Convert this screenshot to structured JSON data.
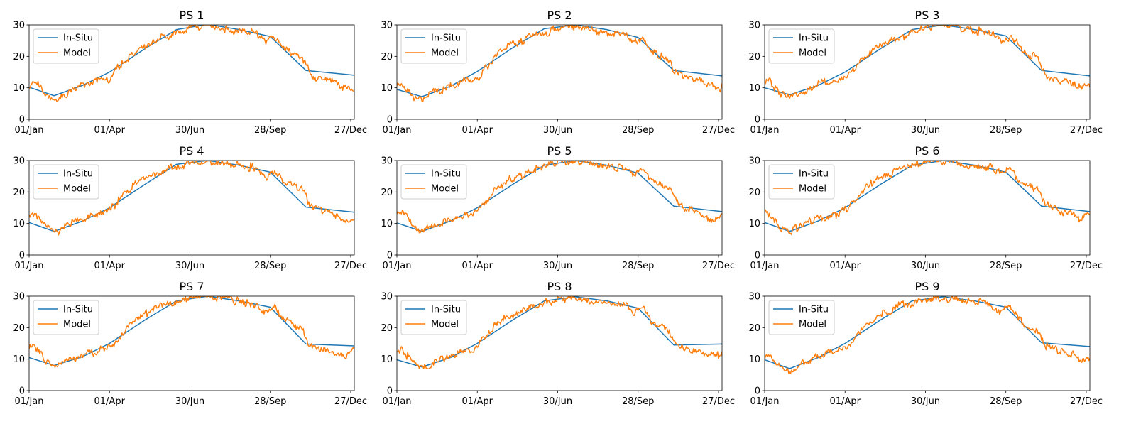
{
  "colors": {
    "insitu": "#1f77b4",
    "model": "#ff7f0e",
    "axis": "#000000",
    "legend_border": "#cccccc"
  },
  "chart_data": [
    {
      "type": "line",
      "title": "PS 1",
      "x_tick_labels": [
        "01/Jan",
        "01/Apr",
        "30/Jun",
        "28/Sep",
        "27/Dec"
      ],
      "x_tick_days": [
        0,
        90,
        180,
        270,
        360
      ],
      "xlim": [
        0,
        364
      ],
      "ylim": [
        0,
        30
      ],
      "y_ticks": [
        0,
        10,
        20,
        30
      ],
      "legend": "upper-left",
      "series": [
        {
          "name": "In-Situ",
          "x": [
            0,
            28,
            60,
            90,
            130,
            165,
            200,
            235,
            270,
            310,
            364
          ],
          "values": [
            10.2,
            7.5,
            10.8,
            15.0,
            22.5,
            28.5,
            30.2,
            28.5,
            26.3,
            15.5,
            14.0
          ]
        },
        {
          "name": "Model",
          "x": [
            0,
            5,
            12,
            20,
            28,
            35,
            45,
            60,
            75,
            90,
            105,
            120,
            135,
            150,
            165,
            180,
            195,
            210,
            225,
            240,
            255,
            265,
            275,
            285,
            295,
            305,
            315,
            325,
            340,
            355,
            364
          ],
          "values": [
            11,
            12,
            11,
            7,
            6,
            7,
            9,
            11,
            12,
            13,
            18,
            22,
            24,
            26,
            27,
            29,
            30,
            29.5,
            28,
            28,
            27,
            25,
            26,
            23,
            21,
            20,
            14,
            13,
            12,
            10,
            10
          ]
        }
      ]
    },
    {
      "type": "line",
      "title": "PS 2",
      "x_tick_labels": [
        "01/Jan",
        "01/Apr",
        "30/Jun",
        "28/Sep",
        "27/Dec"
      ],
      "x_tick_days": [
        0,
        90,
        180,
        270,
        360
      ],
      "xlim": [
        0,
        364
      ],
      "ylim": [
        0,
        30
      ],
      "y_ticks": [
        0,
        10,
        20,
        30
      ],
      "legend": "upper-left",
      "series": [
        {
          "name": "In-Situ",
          "x": [
            0,
            28,
            60,
            90,
            130,
            165,
            200,
            235,
            270,
            310,
            364
          ],
          "values": [
            9.5,
            7.2,
            10.5,
            15.2,
            22.8,
            28.8,
            30.0,
            28.5,
            26.0,
            15.5,
            13.8
          ]
        },
        {
          "name": "Model",
          "x": [
            0,
            5,
            12,
            20,
            28,
            35,
            45,
            60,
            75,
            90,
            105,
            120,
            135,
            150,
            165,
            180,
            195,
            210,
            225,
            240,
            255,
            265,
            275,
            285,
            295,
            305,
            315,
            325,
            340,
            355,
            364
          ],
          "values": [
            11,
            11.5,
            9,
            7,
            6,
            8,
            9,
            10.5,
            12,
            13,
            18,
            23,
            24,
            27,
            27.5,
            29,
            30,
            29,
            28,
            27.5,
            27,
            24,
            26,
            22,
            20,
            18,
            14,
            13,
            12,
            10,
            10
          ]
        }
      ]
    },
    {
      "type": "line",
      "title": "PS 3",
      "x_tick_labels": [
        "01/Jan",
        "01/Apr",
        "30/Jun",
        "28/Sep",
        "27/Dec"
      ],
      "x_tick_days": [
        0,
        90,
        180,
        270,
        360
      ],
      "xlim": [
        0,
        364
      ],
      "ylim": [
        0,
        30
      ],
      "y_ticks": [
        0,
        10,
        20,
        30
      ],
      "legend": "upper-left",
      "series": [
        {
          "name": "In-Situ",
          "x": [
            0,
            28,
            60,
            90,
            130,
            165,
            200,
            235,
            270,
            310,
            364
          ],
          "values": [
            10.0,
            7.8,
            10.8,
            15.0,
            22.5,
            28.5,
            30.0,
            28.5,
            26.5,
            15.5,
            13.8
          ]
        },
        {
          "name": "Model",
          "x": [
            0,
            5,
            12,
            20,
            28,
            35,
            45,
            60,
            75,
            90,
            105,
            120,
            135,
            150,
            165,
            180,
            195,
            210,
            225,
            240,
            255,
            265,
            275,
            285,
            295,
            305,
            315,
            325,
            340,
            355,
            364
          ],
          "values": [
            11,
            12,
            10,
            8,
            7,
            8,
            9,
            11,
            12,
            13,
            18,
            22,
            24,
            26,
            27.5,
            29,
            30,
            29.5,
            28.5,
            28,
            27,
            25,
            26.5,
            23,
            21,
            20,
            14,
            13,
            12,
            10.5,
            11
          ]
        }
      ]
    },
    {
      "type": "line",
      "title": "PS 4",
      "x_tick_labels": [
        "01/Jan",
        "01/Apr",
        "30/Jun",
        "28/Sep",
        "27/Dec"
      ],
      "x_tick_days": [
        0,
        90,
        180,
        270,
        360
      ],
      "xlim": [
        0,
        364
      ],
      "ylim": [
        0,
        30
      ],
      "y_ticks": [
        0,
        10,
        20,
        30
      ],
      "legend": "upper-left",
      "series": [
        {
          "name": "In-Situ",
          "x": [
            0,
            28,
            60,
            90,
            130,
            165,
            200,
            235,
            270,
            310,
            364
          ],
          "values": [
            10.3,
            7.5,
            10.8,
            15.0,
            22.5,
            28.8,
            30.0,
            28.5,
            26.3,
            15.2,
            13.6
          ]
        },
        {
          "name": "Model",
          "x": [
            0,
            5,
            12,
            20,
            28,
            35,
            45,
            60,
            75,
            90,
            105,
            120,
            135,
            150,
            165,
            180,
            195,
            210,
            225,
            240,
            255,
            265,
            275,
            285,
            295,
            305,
            315,
            325,
            340,
            355,
            364
          ],
          "values": [
            12,
            12.5,
            11,
            9,
            7.5,
            8,
            10,
            11.5,
            12.5,
            14,
            19,
            23,
            25,
            27,
            28,
            29.5,
            30,
            29.5,
            29,
            28,
            27.5,
            25,
            27,
            23,
            22,
            21,
            16,
            14.5,
            13,
            11,
            11
          ]
        }
      ]
    },
    {
      "type": "line",
      "title": "PS 5",
      "x_tick_labels": [
        "01/Jan",
        "01/Apr",
        "30/Jun",
        "28/Sep",
        "27/Dec"
      ],
      "x_tick_days": [
        0,
        90,
        180,
        270,
        360
      ],
      "xlim": [
        0,
        364
      ],
      "ylim": [
        0,
        30
      ],
      "y_ticks": [
        0,
        10,
        20,
        30
      ],
      "legend": "upper-left",
      "series": [
        {
          "name": "In-Situ",
          "x": [
            0,
            28,
            60,
            90,
            130,
            165,
            200,
            235,
            270,
            310,
            364
          ],
          "values": [
            10.2,
            7.5,
            10.8,
            15.0,
            22.5,
            28.5,
            30.0,
            28.5,
            26.0,
            15.5,
            13.8
          ]
        },
        {
          "name": "Model",
          "x": [
            0,
            5,
            12,
            20,
            28,
            35,
            45,
            60,
            75,
            90,
            105,
            120,
            135,
            150,
            165,
            180,
            195,
            210,
            225,
            240,
            255,
            265,
            275,
            285,
            295,
            305,
            315,
            325,
            340,
            355,
            364
          ],
          "values": [
            13,
            13.5,
            12,
            9,
            8,
            8.5,
            10,
            11.5,
            12.5,
            14,
            19,
            23,
            25,
            27,
            28,
            29.5,
            30,
            29.5,
            29,
            28,
            27.5,
            26,
            27,
            23,
            22,
            21,
            16,
            14.5,
            13,
            11.5,
            12.5
          ]
        }
      ]
    },
    {
      "type": "line",
      "title": "PS 6",
      "x_tick_labels": [
        "01/Jan",
        "01/Apr",
        "30/Jun",
        "28/Sep",
        "27/Dec"
      ],
      "x_tick_days": [
        0,
        90,
        180,
        270,
        360
      ],
      "xlim": [
        0,
        364
      ],
      "ylim": [
        0,
        30
      ],
      "y_ticks": [
        0,
        10,
        20,
        30
      ],
      "legend": "upper-left",
      "series": [
        {
          "name": "In-Situ",
          "x": [
            0,
            28,
            60,
            90,
            130,
            165,
            200,
            235,
            270,
            310,
            364
          ],
          "values": [
            10.3,
            7.5,
            10.8,
            15.0,
            22.5,
            28.5,
            30.0,
            28.5,
            26.3,
            15.5,
            13.8
          ]
        },
        {
          "name": "Model",
          "x": [
            0,
            5,
            12,
            20,
            28,
            35,
            45,
            60,
            75,
            90,
            105,
            120,
            135,
            150,
            165,
            180,
            195,
            210,
            225,
            240,
            255,
            265,
            275,
            285,
            295,
            305,
            315,
            325,
            340,
            355,
            364
          ],
          "values": [
            13,
            13,
            11,
            8.5,
            7.5,
            8.5,
            10,
            11.5,
            12.5,
            14,
            19,
            23,
            25,
            27,
            28,
            29.5,
            30,
            29.5,
            29,
            28,
            27.5,
            25.5,
            27,
            23,
            22,
            21,
            16,
            14.5,
            13,
            11.5,
            13
          ]
        }
      ]
    },
    {
      "type": "line",
      "title": "PS 7",
      "x_tick_labels": [
        "01/Jan",
        "01/Apr",
        "30/Jun",
        "28/Sep",
        "27/Dec"
      ],
      "x_tick_days": [
        0,
        90,
        180,
        270,
        360
      ],
      "xlim": [
        0,
        364
      ],
      "ylim": [
        0,
        30
      ],
      "y_ticks": [
        0,
        10,
        20,
        30
      ],
      "legend": "upper-left",
      "series": [
        {
          "name": "In-Situ",
          "x": [
            0,
            28,
            60,
            90,
            130,
            165,
            200,
            235,
            270,
            310,
            364
          ],
          "values": [
            10.5,
            8.0,
            10.8,
            15.0,
            22.5,
            28.5,
            30.0,
            28.5,
            26.5,
            14.8,
            14.2
          ]
        },
        {
          "name": "Model",
          "x": [
            0,
            5,
            12,
            20,
            28,
            35,
            45,
            60,
            75,
            90,
            105,
            120,
            135,
            150,
            165,
            180,
            195,
            210,
            225,
            240,
            255,
            265,
            275,
            285,
            295,
            305,
            315,
            325,
            340,
            355,
            364
          ],
          "values": [
            13.5,
            14,
            12,
            9,
            7,
            8,
            9.5,
            11,
            12.5,
            13.5,
            19,
            23,
            25,
            27,
            28,
            29.5,
            30,
            29.5,
            29,
            28,
            27.5,
            25,
            27,
            23,
            21,
            20,
            14,
            13.5,
            12.5,
            11,
            13.5
          ]
        }
      ]
    },
    {
      "type": "line",
      "title": "PS 8",
      "x_tick_labels": [
        "01/Jan",
        "01/Apr",
        "30/Jun",
        "28/Sep",
        "27/Dec"
      ],
      "x_tick_days": [
        0,
        90,
        180,
        270,
        360
      ],
      "xlim": [
        0,
        364
      ],
      "ylim": [
        0,
        30
      ],
      "y_ticks": [
        0,
        10,
        20,
        30
      ],
      "legend": "upper-left",
      "series": [
        {
          "name": "In-Situ",
          "x": [
            0,
            28,
            60,
            90,
            130,
            165,
            200,
            235,
            270,
            310,
            364
          ],
          "values": [
            9.8,
            7.5,
            10.5,
            15.0,
            22.5,
            28.5,
            29.8,
            28.5,
            26.2,
            14.5,
            14.8
          ]
        },
        {
          "name": "Model",
          "x": [
            0,
            5,
            12,
            20,
            28,
            35,
            45,
            60,
            75,
            90,
            105,
            120,
            135,
            150,
            165,
            180,
            195,
            210,
            225,
            240,
            255,
            265,
            275,
            285,
            295,
            305,
            315,
            325,
            340,
            355,
            364
          ],
          "values": [
            12.5,
            13,
            11,
            8,
            7,
            7.5,
            9.5,
            11,
            12.5,
            13.5,
            19,
            23,
            25,
            27,
            27.5,
            29,
            29.5,
            29,
            28.5,
            28,
            27,
            25,
            26.5,
            22,
            20,
            19,
            14,
            13.5,
            12,
            11,
            12
          ]
        }
      ]
    },
    {
      "type": "line",
      "title": "PS 9",
      "x_tick_labels": [
        "01/Jan",
        "01/Apr",
        "30/Jun",
        "28/Sep",
        "27/Dec"
      ],
      "x_tick_days": [
        0,
        90,
        180,
        270,
        360
      ],
      "xlim": [
        0,
        364
      ],
      "ylim": [
        0,
        30
      ],
      "y_ticks": [
        0,
        10,
        20,
        30
      ],
      "legend": "upper-left",
      "series": [
        {
          "name": "In-Situ",
          "x": [
            0,
            28,
            60,
            90,
            130,
            165,
            200,
            235,
            270,
            310,
            364
          ],
          "values": [
            9.8,
            7.0,
            10.5,
            15.0,
            22.5,
            28.5,
            29.8,
            28.5,
            26.5,
            15.2,
            14.0
          ]
        },
        {
          "name": "Model",
          "x": [
            0,
            5,
            12,
            20,
            28,
            35,
            45,
            60,
            75,
            90,
            105,
            120,
            135,
            150,
            165,
            180,
            195,
            210,
            225,
            240,
            255,
            265,
            275,
            285,
            295,
            305,
            315,
            325,
            340,
            355,
            364
          ],
          "values": [
            11,
            12,
            9.5,
            7.5,
            6,
            7.5,
            9,
            11,
            12.5,
            13.5,
            18.5,
            22.5,
            24.5,
            27,
            27.5,
            29,
            29.5,
            29,
            28.5,
            28,
            27,
            25,
            26.5,
            22,
            20.5,
            19.5,
            14,
            13,
            12,
            10,
            10.5
          ]
        }
      ]
    }
  ]
}
